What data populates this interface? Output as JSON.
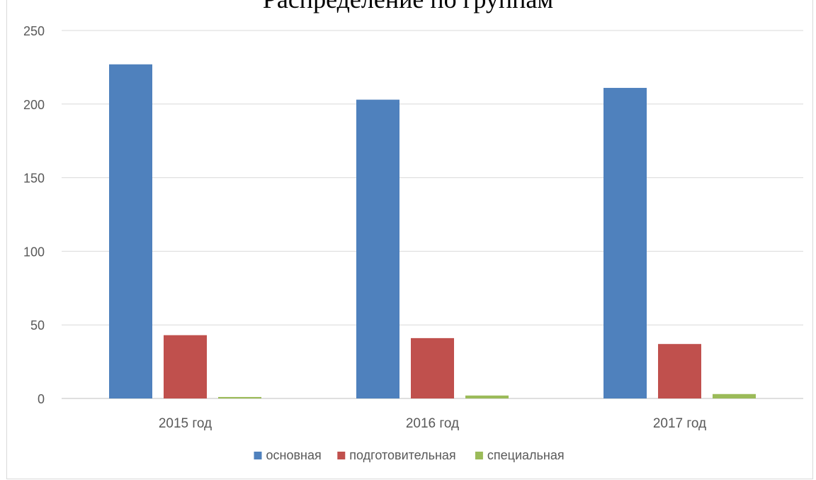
{
  "chart_data": {
    "type": "bar",
    "title": "Распределение по группам",
    "xlabel": "",
    "ylabel": "",
    "categories": [
      "2015 год",
      "2016 год",
      "2017 год"
    ],
    "series": [
      {
        "name": "основная",
        "color": "#4f81bd",
        "values": [
          227,
          203,
          211
        ]
      },
      {
        "name": "подготовительная",
        "color": "#c0504d",
        "values": [
          43,
          41,
          37
        ]
      },
      {
        "name": "специальная",
        "color": "#9bbb59",
        "values": [
          1,
          2,
          3
        ]
      }
    ],
    "ylim": [
      0,
      250
    ],
    "yticks": [
      "0",
      "50",
      "100",
      "150",
      "200",
      "250"
    ],
    "grid": true,
    "legend_position": "bottom"
  }
}
